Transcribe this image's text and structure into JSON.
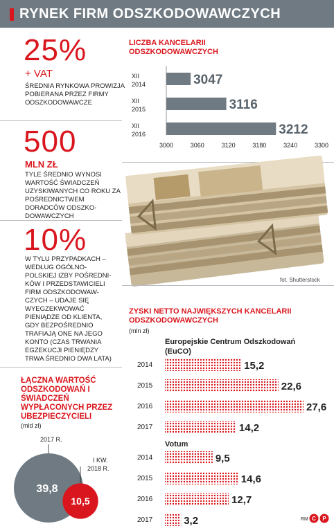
{
  "header": {
    "title": "RYNEK FIRM ODSZKODOWAWCZYCH"
  },
  "stat1": {
    "value": "25%",
    "sub": "+ VAT",
    "desc": "ŚREDNIA RYNKOWA PROWIZJA POBIERANA PRZEZ FIRMY ODSZKODOWAWCZE"
  },
  "stat2": {
    "value": "500",
    "sub": "MLN ZŁ",
    "desc": "TYLE ŚREDNIO WYNOSI WARTOŚĆ ŚWIADCZEŃ UZYSKIWANYCH CO ROKU ZA POŚREDNICTWEM DORADCÓW ODSZKO-DOWAWCZYCH"
  },
  "stat3": {
    "value": "10%",
    "desc": "W TYLU PRZYPADKACH – WEDŁUG OGÓLNO-POLSKIEJ IZBY POŚREDNI-KÓW I PRZEDSTAWICIELI FIRM ODSZKODOWAW-CZYCH – UDAJE SIĘ WYEGZEKWOWAĆ PIENIĄDZE OD KLIENTA, GDY BEZPOŚREDNIO TRAFIAJĄ ONE NA JEGO KONTO (CZAS TRWANIA EGZEKUCJI PIENIĘDZY TRWA ŚREDNIO DWA LATA)"
  },
  "photo_credit": "fot. Shutterstock",
  "footer": {
    "credit": "RM"
  },
  "chart_data": [
    {
      "type": "bar",
      "title": "LICZBA KANCELARII ODSZKODOWAWCZYCH",
      "categories": [
        "XII 2014",
        "XII 2015",
        "XII 2016"
      ],
      "values": [
        3047,
        3116,
        3212
      ],
      "value_labels": [
        "3047",
        "3116",
        "3212"
      ],
      "xlim": [
        3000,
        3300
      ],
      "x_ticks": [
        "3000",
        "3060",
        "3120",
        "3180",
        "3240",
        "3300"
      ],
      "orientation": "horizontal",
      "color": "#6f7a82"
    },
    {
      "type": "bar",
      "title": "ZYSKI NETTO NAJWIĘKSZYCH KANCELARII ODSZKODOWAWCZYCH",
      "unit": "(mln zł)",
      "orientation": "horizontal",
      "color": "#d9161d",
      "groups": [
        {
          "name": "Europejskie Centrum Odszkodowań (EuCO)",
          "categories": [
            "2014",
            "2015",
            "2016",
            "2017"
          ],
          "values": [
            15.2,
            22.6,
            27.6,
            14.2
          ],
          "value_labels": [
            "15,2",
            "22,6",
            "27,6",
            "14,2"
          ]
        },
        {
          "name": "Votum",
          "categories": [
            "2014",
            "2015",
            "2016",
            "2017"
          ],
          "values": [
            9.5,
            14.6,
            12.7,
            3.2
          ],
          "value_labels": [
            "9,5",
            "14,6",
            "12,7",
            "3,2"
          ]
        }
      ]
    },
    {
      "type": "bubble",
      "title": "ŁĄCZNA WARTOŚĆ ODSZKODOWAŃ I ŚWIADCZEŃ WYPŁACONYCH PRZEZ UBEZPIECZYCIELI",
      "unit": "(mld zł)",
      "categories": [
        "2017 R.",
        "I KW. 2018 R."
      ],
      "values": [
        39.8,
        10.5
      ],
      "value_labels": [
        "39,8",
        "10,5"
      ],
      "colors": [
        "#6f7a82",
        "#d9161d"
      ]
    }
  ]
}
